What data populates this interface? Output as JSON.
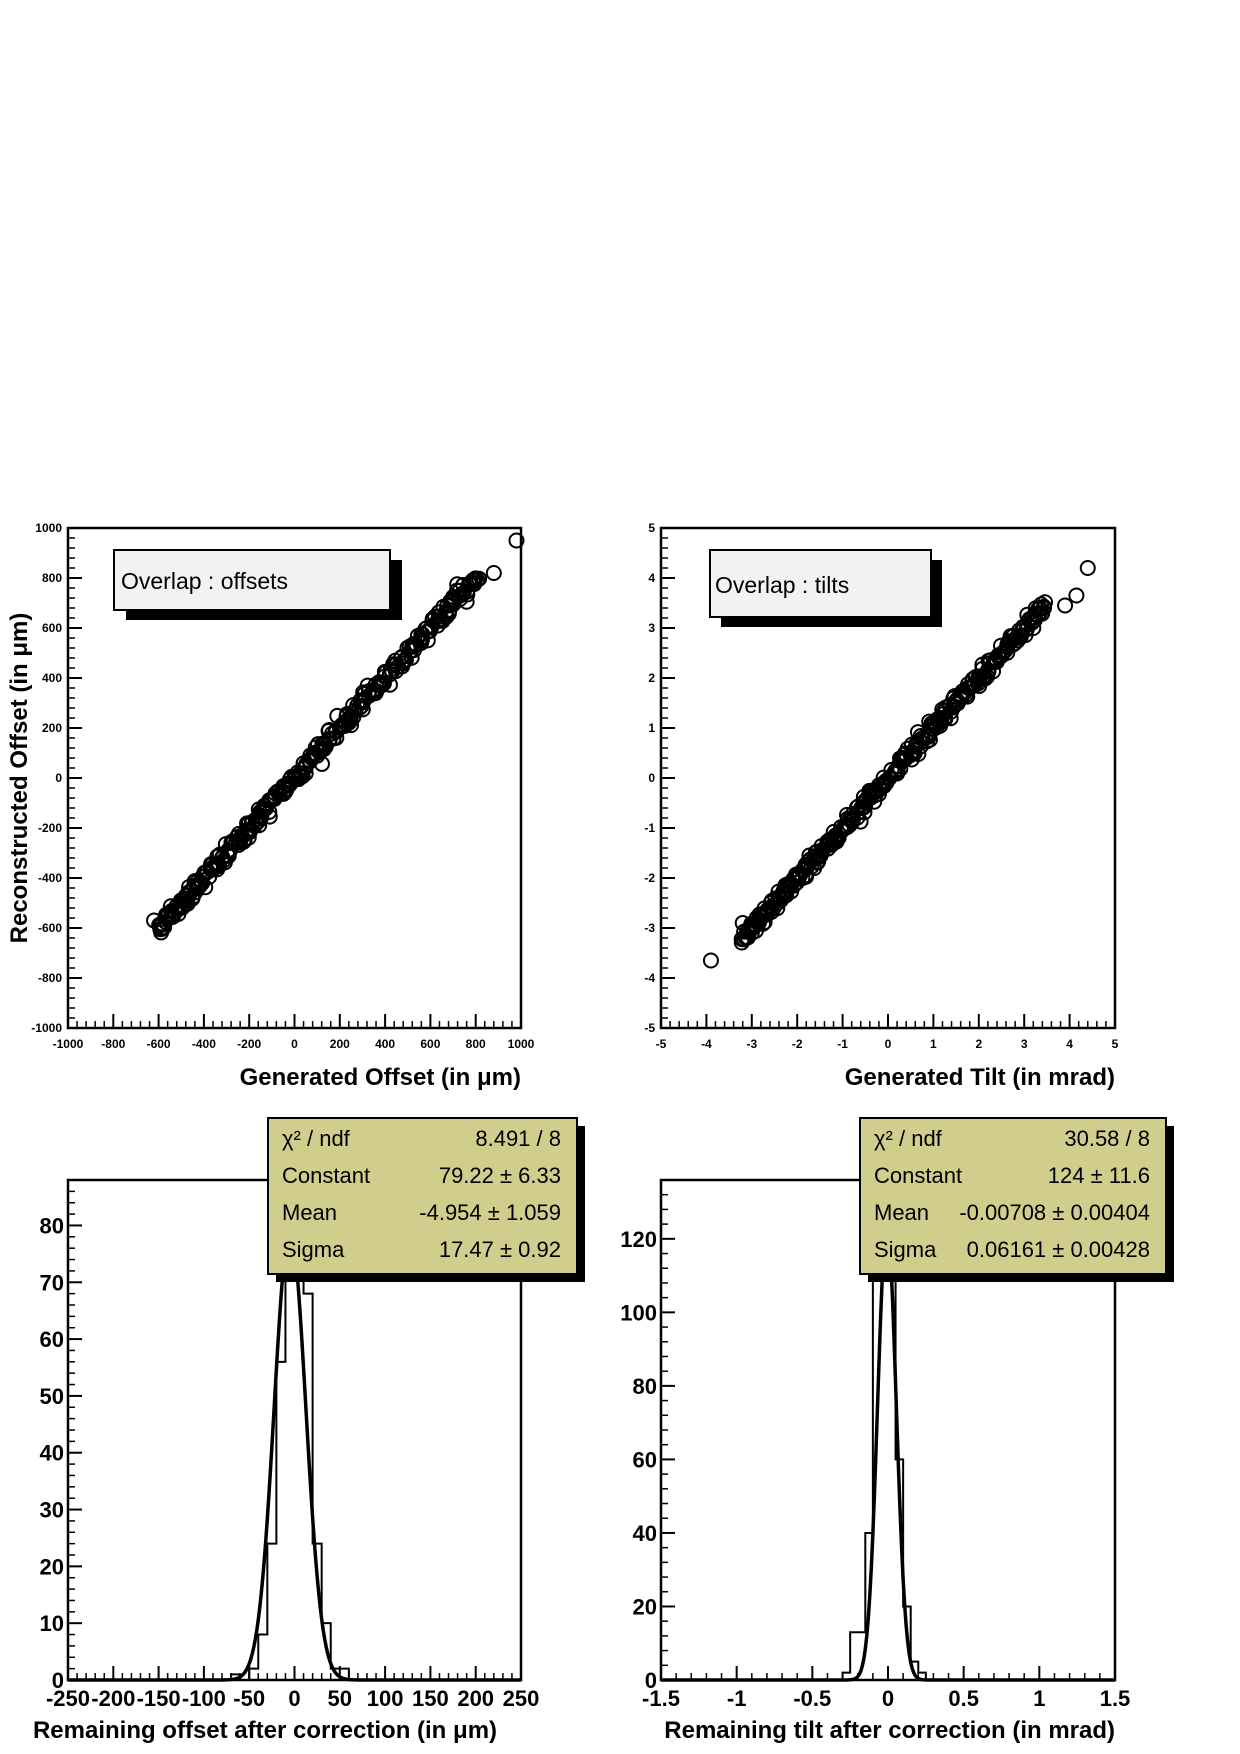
{
  "chart_data": [
    {
      "id": "offsets",
      "type": "scatter",
      "xlabel": "Generated Offset (in μm)",
      "ylabel": "Reconstructed Offset (in μm)",
      "legend_text": "Overlap : offsets",
      "legend_position": "top-left",
      "xlim": [
        -1000,
        1000
      ],
      "ylim": [
        -1000,
        1000
      ],
      "xticks": [
        -1000,
        -800,
        -600,
        -400,
        -200,
        0,
        200,
        400,
        600,
        800,
        1000
      ],
      "yticks": [
        -1000,
        -800,
        -600,
        -400,
        -200,
        0,
        200,
        400,
        600,
        800,
        1000
      ],
      "marker": "open-circle",
      "trend": {
        "x_from": -600,
        "x_to": 1000,
        "slope": 1.0,
        "intercept": 0
      },
      "outliers": [
        [
          -620,
          -570
        ],
        [
          -590,
          -585
        ],
        [
          560,
          575
        ],
        [
          610,
          630
        ],
        [
          700,
          715
        ],
        [
          760,
          705
        ],
        [
          880,
          820
        ],
        [
          980,
          950
        ]
      ]
    },
    {
      "id": "tilts",
      "type": "scatter",
      "xlabel": "Generated Tilt (in mrad)",
      "ylabel": "",
      "legend_text": "Overlap : tilts",
      "legend_position": "top-left",
      "xlim": [
        -5,
        5
      ],
      "ylim": [
        -5,
        5
      ],
      "xticks": [
        -5,
        -4,
        -3,
        -2,
        -1,
        0,
        1,
        2,
        3,
        4,
        5
      ],
      "yticks": [
        -5,
        -4,
        -3,
        -2,
        -1,
        0,
        1,
        2,
        3,
        4,
        5
      ],
      "marker": "open-circle",
      "trend": {
        "x_from": -3.2,
        "x_to": 4.4,
        "slope": 1.0,
        "intercept": 0
      },
      "outliers": [
        [
          -3.9,
          -3.65
        ],
        [
          -3.2,
          -2.9
        ],
        [
          -3.0,
          -3.1
        ],
        [
          2.8,
          2.7
        ],
        [
          3.2,
          3.0
        ],
        [
          3.9,
          3.45
        ],
        [
          4.15,
          3.65
        ],
        [
          4.4,
          4.2
        ]
      ]
    },
    {
      "id": "offset_residual",
      "type": "histogram",
      "xlabel": "Remaining offset after correction (in μm)",
      "ylabel": "",
      "xlim": [
        -250,
        250
      ],
      "ylim": [
        0,
        88
      ],
      "xticks": [
        -250,
        -200,
        -150,
        -100,
        -50,
        0,
        50,
        100,
        150,
        200,
        250
      ],
      "yticks": [
        0,
        10,
        20,
        30,
        40,
        50,
        60,
        70,
        80
      ],
      "bins": {
        "edges": [
          -70,
          -60,
          -50,
          -40,
          -30,
          -20,
          -10,
          0,
          10,
          20,
          30,
          40,
          50,
          60,
          70
        ],
        "counts": [
          1,
          0,
          2,
          8,
          24,
          56,
          76,
          82,
          68,
          24,
          10,
          2,
          2,
          0
        ]
      },
      "fit": {
        "constant": 79.22,
        "mean": -4.954,
        "sigma": 17.47
      },
      "stats_box": {
        "rows": [
          {
            "label": "χ² / ndf",
            "value": "8.491 / 8"
          },
          {
            "label": "Constant",
            "value": "79.22 ± 6.33"
          },
          {
            "label": "Mean",
            "value": "-4.954 ± 1.059"
          },
          {
            "label": "Sigma",
            "value": "17.47 ± 0.92"
          }
        ]
      }
    },
    {
      "id": "tilt_residual",
      "type": "histogram",
      "xlabel": "Remaining tilt after correction (in mrad)",
      "ylabel": "",
      "xlim": [
        -1.5,
        1.5
      ],
      "ylim": [
        0,
        136
      ],
      "xticks": [
        -1.5,
        -1,
        -0.5,
        0,
        0.5,
        1,
        1.5
      ],
      "yticks": [
        0,
        20,
        40,
        60,
        80,
        100,
        120
      ],
      "bins": {
        "edges": [
          -0.3,
          -0.25,
          -0.2,
          -0.15,
          -0.1,
          -0.05,
          0,
          0.05,
          0.1,
          0.15,
          0.2,
          0.25,
          0.3
        ],
        "counts": [
          2,
          13,
          13,
          40,
          120,
          124,
          118,
          60,
          20,
          5,
          2,
          0
        ]
      },
      "fit": {
        "constant": 124,
        "mean": -0.00708,
        "sigma": 0.06161
      },
      "stats_box": {
        "rows": [
          {
            "label": "χ² / ndf",
            "value": "30.58 / 8"
          },
          {
            "label": "Constant",
            "value": "124 ± 11.6"
          },
          {
            "label": "Mean",
            "value": "-0.00708 ± 0.00404"
          },
          {
            "label": "Sigma",
            "value": "0.06161 ± 0.00428"
          }
        ]
      }
    }
  ]
}
